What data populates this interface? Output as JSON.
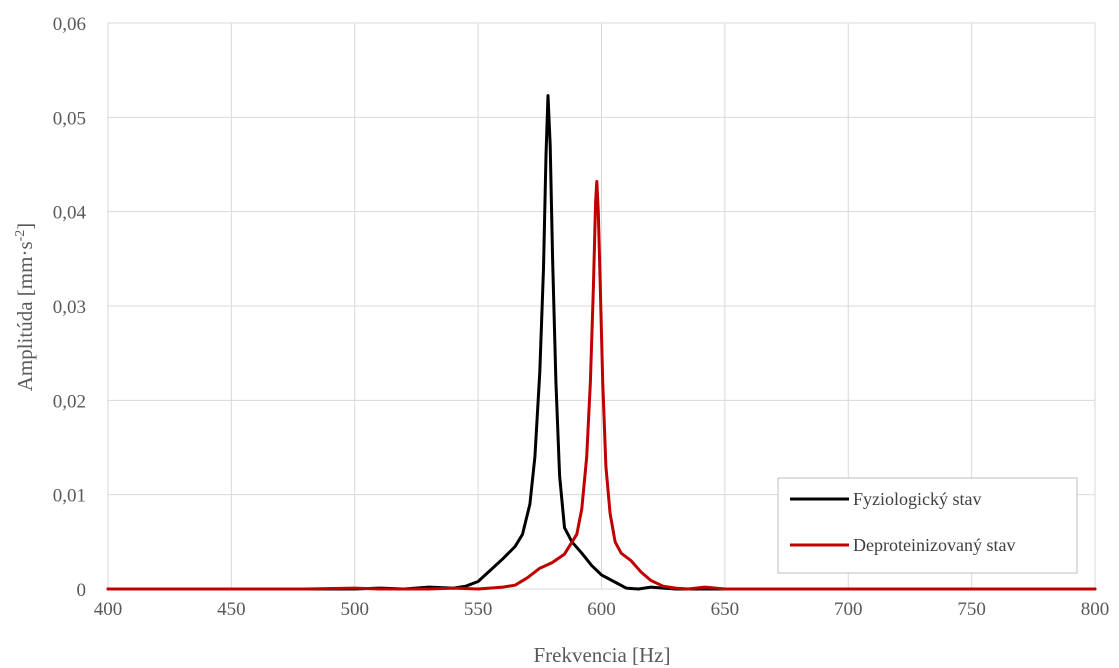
{
  "chart_data": {
    "type": "line",
    "xlabel": "Frekvencia [Hz]",
    "ylabel_main": "Amplitúda [mm·s",
    "ylabel_sup": "-2",
    "ylabel_end": "]",
    "xlim": [
      400,
      800
    ],
    "ylim": [
      0,
      0.06
    ],
    "x_ticks": [
      400,
      450,
      500,
      550,
      600,
      650,
      700,
      750,
      800
    ],
    "x_tick_labels": [
      "400",
      "450",
      "500",
      "550",
      "600",
      "650",
      "700",
      "750",
      "800"
    ],
    "y_ticks": [
      0,
      0.01,
      0.02,
      0.03,
      0.04,
      0.05,
      0.06
    ],
    "y_tick_labels": [
      "0",
      "0,01",
      "0,02",
      "0,03",
      "0,04",
      "0,05",
      "0,06"
    ],
    "grid": true,
    "legend_position": "bottom-right",
    "series": [
      {
        "name": "Fyziologický stav",
        "color": "#000000",
        "points": [
          [
            400,
            0
          ],
          [
            450,
            0
          ],
          [
            500,
            0
          ],
          [
            510,
            0.0001
          ],
          [
            520,
            0
          ],
          [
            530,
            0.0002
          ],
          [
            540,
            0.0001
          ],
          [
            545,
            0.0003
          ],
          [
            550,
            0.0008
          ],
          [
            555,
            0.002
          ],
          [
            560,
            0.0032
          ],
          [
            565,
            0.0045
          ],
          [
            568,
            0.0058
          ],
          [
            571,
            0.009
          ],
          [
            573,
            0.014
          ],
          [
            575,
            0.023
          ],
          [
            576.5,
            0.034
          ],
          [
            577.5,
            0.046
          ],
          [
            578.3,
            0.0523
          ],
          [
            579.2,
            0.047
          ],
          [
            580.2,
            0.035
          ],
          [
            581.5,
            0.022
          ],
          [
            583,
            0.012
          ],
          [
            585,
            0.0065
          ],
          [
            588,
            0.005
          ],
          [
            592,
            0.0038
          ],
          [
            596,
            0.0025
          ],
          [
            600,
            0.0015
          ],
          [
            605,
            0.0008
          ],
          [
            610,
            0.0001
          ],
          [
            615,
            0
          ],
          [
            620,
            0.0002
          ],
          [
            625,
            0.0001
          ],
          [
            630,
            0
          ],
          [
            700,
            0
          ],
          [
            800,
            0
          ]
        ]
      },
      {
        "name": "Deproteinizovaný stav",
        "color": "#c00000",
        "points": [
          [
            400,
            0
          ],
          [
            480,
            0
          ],
          [
            500,
            0.0001
          ],
          [
            510,
            0
          ],
          [
            530,
            0
          ],
          [
            540,
            0.0001
          ],
          [
            550,
            0
          ],
          [
            560,
            0.0002
          ],
          [
            565,
            0.0004
          ],
          [
            570,
            0.0012
          ],
          [
            575,
            0.0022
          ],
          [
            580,
            0.0028
          ],
          [
            585,
            0.0037
          ],
          [
            590,
            0.0058
          ],
          [
            592,
            0.0085
          ],
          [
            594,
            0.014
          ],
          [
            595.5,
            0.022
          ],
          [
            596.7,
            0.032
          ],
          [
            597.6,
            0.041
          ],
          [
            598.1,
            0.0432
          ],
          [
            598.7,
            0.04
          ],
          [
            599.5,
            0.032
          ],
          [
            600.5,
            0.022
          ],
          [
            601.8,
            0.013
          ],
          [
            603.5,
            0.008
          ],
          [
            605.5,
            0.005
          ],
          [
            608,
            0.0038
          ],
          [
            612,
            0.003
          ],
          [
            616,
            0.0018
          ],
          [
            620,
            0.0009
          ],
          [
            625,
            0.0003
          ],
          [
            630,
            0.0001
          ],
          [
            635,
            0
          ],
          [
            642,
            0.0002
          ],
          [
            650,
            0
          ],
          [
            700,
            0
          ],
          [
            800,
            0
          ]
        ]
      }
    ]
  }
}
